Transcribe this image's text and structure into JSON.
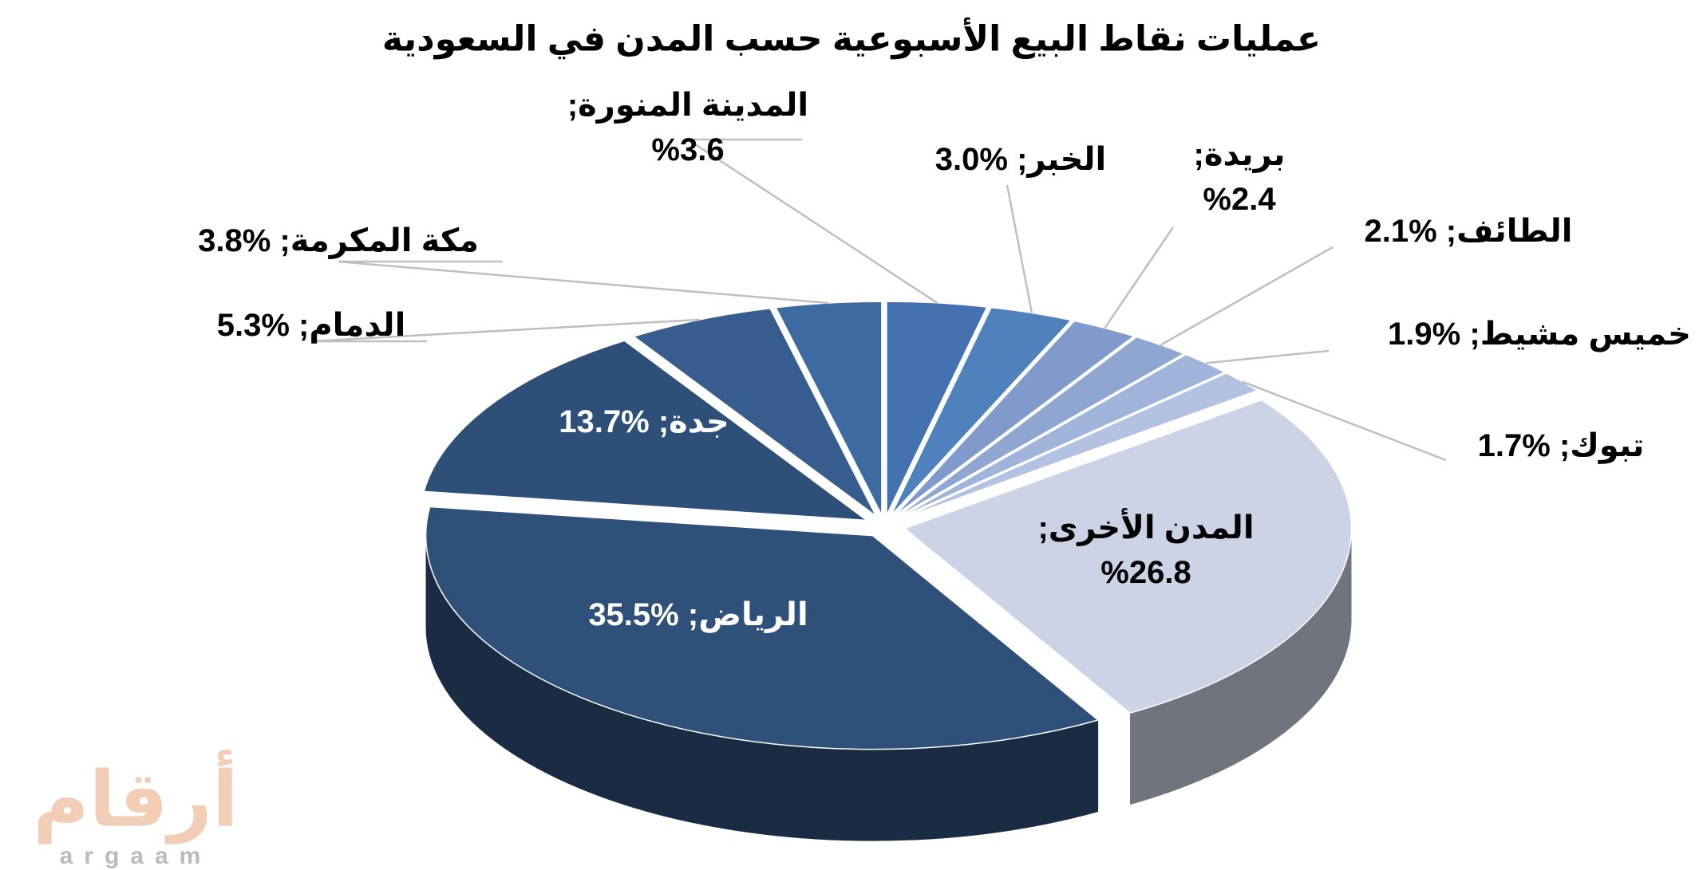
{
  "chart_data": {
    "type": "pie",
    "title": "عمليات نقاط البيع الأسبوعية حسب المدن في السعودية",
    "categories": [
      "المدينة المنورة",
      "الخبر",
      "بريدة",
      "الطائف",
      "خميس مشيط",
      "تبوك",
      "المدن الأخرى",
      "الرياض",
      "جدة",
      "الدمام",
      "مكة المكرمة"
    ],
    "values": [
      3.6,
      3.0,
      2.4,
      2.1,
      1.9,
      1.7,
      26.8,
      35.5,
      13.7,
      5.3,
      3.8
    ],
    "value_labels": [
      "%3.6",
      "%3.0",
      "%2.4",
      "%2.1",
      "%1.9",
      "%1.7",
      "%26.8",
      "%35.5",
      "%13.7",
      "%5.3",
      "%3.8"
    ],
    "colors": [
      "#4472b0",
      "#4f81bd",
      "#7f9acb",
      "#8ea6d0",
      "#a0b3d8",
      "#b3c2e0",
      "#ccd3e6",
      "#2f5079",
      "#2e4f78",
      "#365d8d",
      "#3d6aa1"
    ],
    "label_separator": ";"
  },
  "watermark": {
    "arabic": "أرقام",
    "latin": "argaam"
  }
}
